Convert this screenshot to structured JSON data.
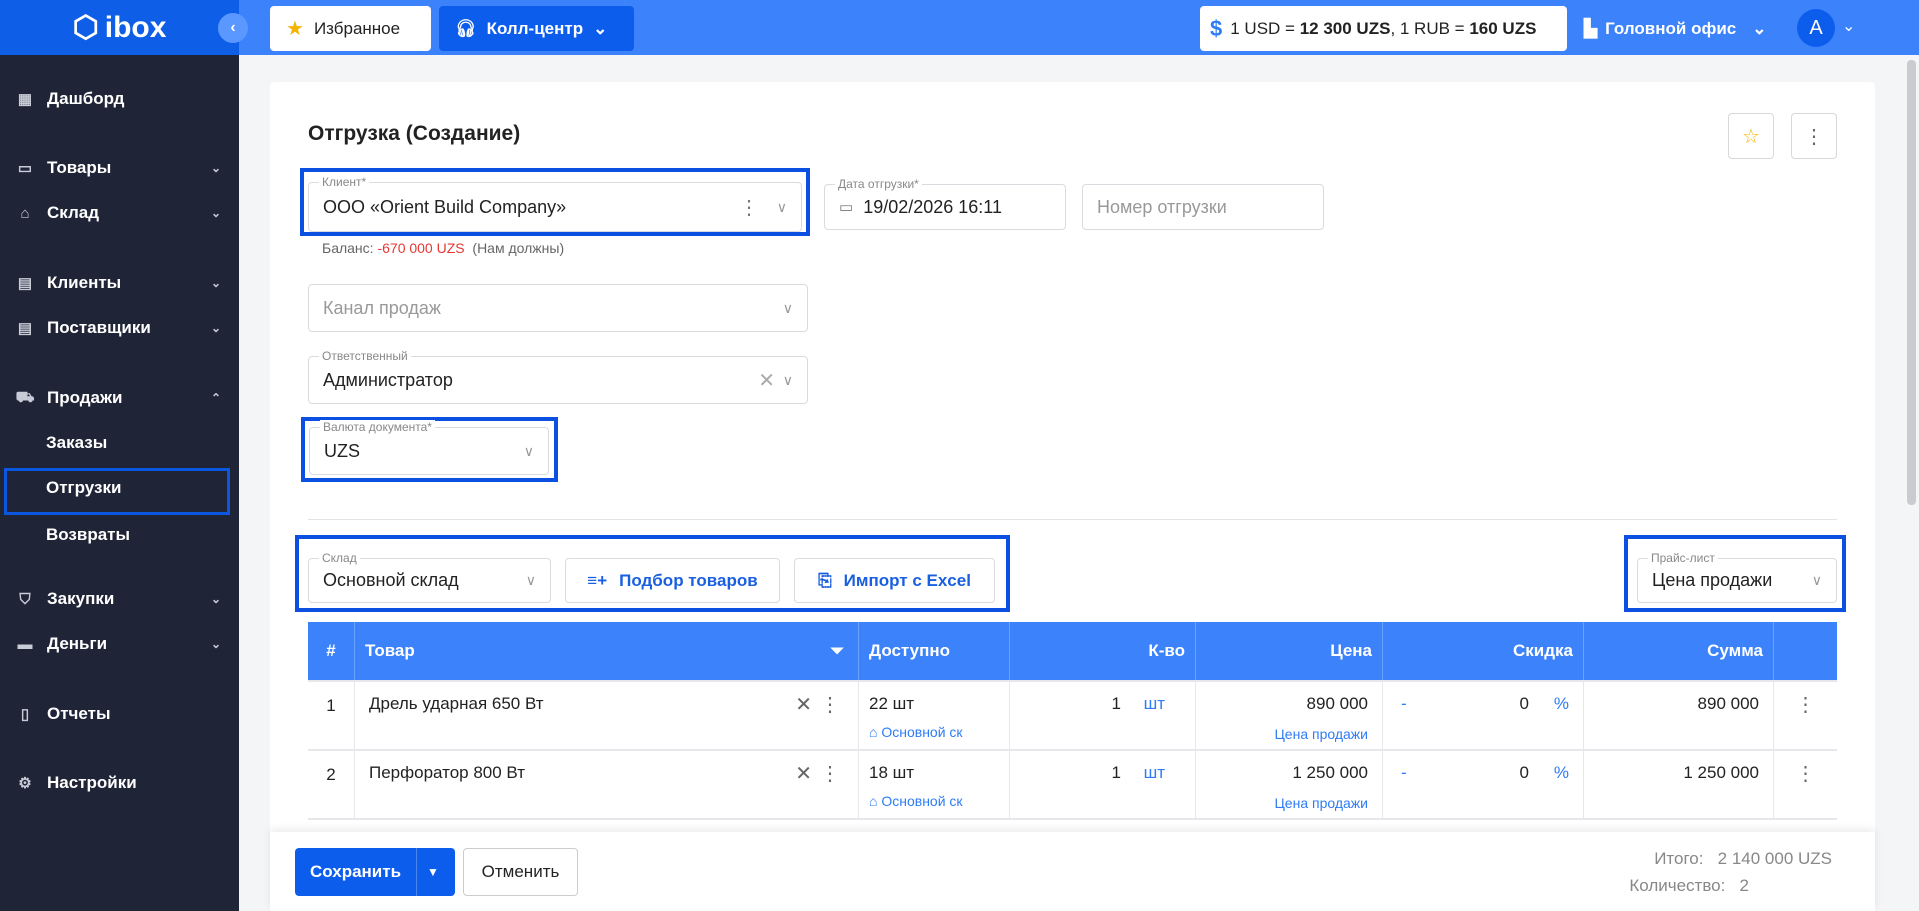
{
  "header": {
    "logo": "ibox",
    "favorites": "Избранное",
    "call_center": "Колл-центр",
    "rate_usd": "1 USD = ",
    "rate_usd_val": "12 300 UZS",
    "rate_sep": ", 1 RUB = ",
    "rate_rub_val": "160 UZS",
    "office": "Головной офис",
    "avatar": "A"
  },
  "sidebar": {
    "items": [
      {
        "label": "Дашборд",
        "icon": "grid-icon"
      },
      {
        "label": "Товары",
        "icon": "box-icon"
      },
      {
        "label": "Склад",
        "icon": "warehouse-icon"
      },
      {
        "label": "Клиенты",
        "icon": "store-icon"
      },
      {
        "label": "Поставщики",
        "icon": "store-icon"
      },
      {
        "label": "Продажи",
        "icon": "truck-icon"
      },
      {
        "label": "Заказы"
      },
      {
        "label": "Отгрузки"
      },
      {
        "label": "Возвраты"
      },
      {
        "label": "Закупки",
        "icon": "cart-icon"
      },
      {
        "label": "Деньги",
        "icon": "card-icon"
      },
      {
        "label": "Отчеты",
        "icon": "report-icon"
      },
      {
        "label": "Настройки",
        "icon": "gear-icon"
      }
    ]
  },
  "form": {
    "title": "Отгрузка (Создание)",
    "client_label": "Клиент*",
    "client_value": "ООО «Orient Build Company»",
    "date_label": "Дата отгрузки*",
    "date_value": "19/02/2026 16:11",
    "number_placeholder": "Номер отгрузки",
    "balance_label": "Баланс:",
    "balance_value": "-670 000 UZS",
    "balance_note": "(Нам должны)",
    "channel_placeholder": "Канал продаж",
    "responsible_label": "Ответственный",
    "responsible_value": "Администратор",
    "currency_label": "Валюта документа*",
    "currency_value": "UZS",
    "warehouse_label": "Склад",
    "warehouse_value": "Основной склад",
    "pick_button": "Подбор товаров",
    "import_button": "Импорт с Excel",
    "pricelist_label": "Прайс-лист",
    "pricelist_value": "Цена продажи"
  },
  "table": {
    "headers": [
      "#",
      "Товар",
      "Доступно",
      "К-во",
      "Цена",
      "Скидка",
      "Сумма"
    ],
    "rows": [
      {
        "n": "1",
        "product": "Дрель ударная 650 Вт",
        "available": "22 шт",
        "warehouse": "Основной ск",
        "qty": "1",
        "unit": "шт",
        "price": "890 000",
        "price_type": "Цена продажи",
        "discount_sign": "-",
        "discount": "0",
        "discount_unit": "%",
        "sum": "890 000"
      },
      {
        "n": "2",
        "product": "Перфоратор 800 Вт",
        "available": "18 шт",
        "warehouse": "Основной ск",
        "qty": "1",
        "unit": "шт",
        "price": "1 250 000",
        "price_type": "Цена продажи",
        "discount_sign": "-",
        "discount": "0",
        "discount_unit": "%",
        "sum": "1 250 000"
      }
    ]
  },
  "footer": {
    "save": "Сохранить",
    "cancel": "Отменить",
    "total_label": "Итого:",
    "total_value": "2 140 000 UZS",
    "count_label": "Количество:",
    "count_value": "2"
  },
  "colors": {
    "accent": "#3b82fb",
    "sidebar": "#1f2437",
    "highlight": "#0b50e0",
    "negative": "#e53935"
  }
}
